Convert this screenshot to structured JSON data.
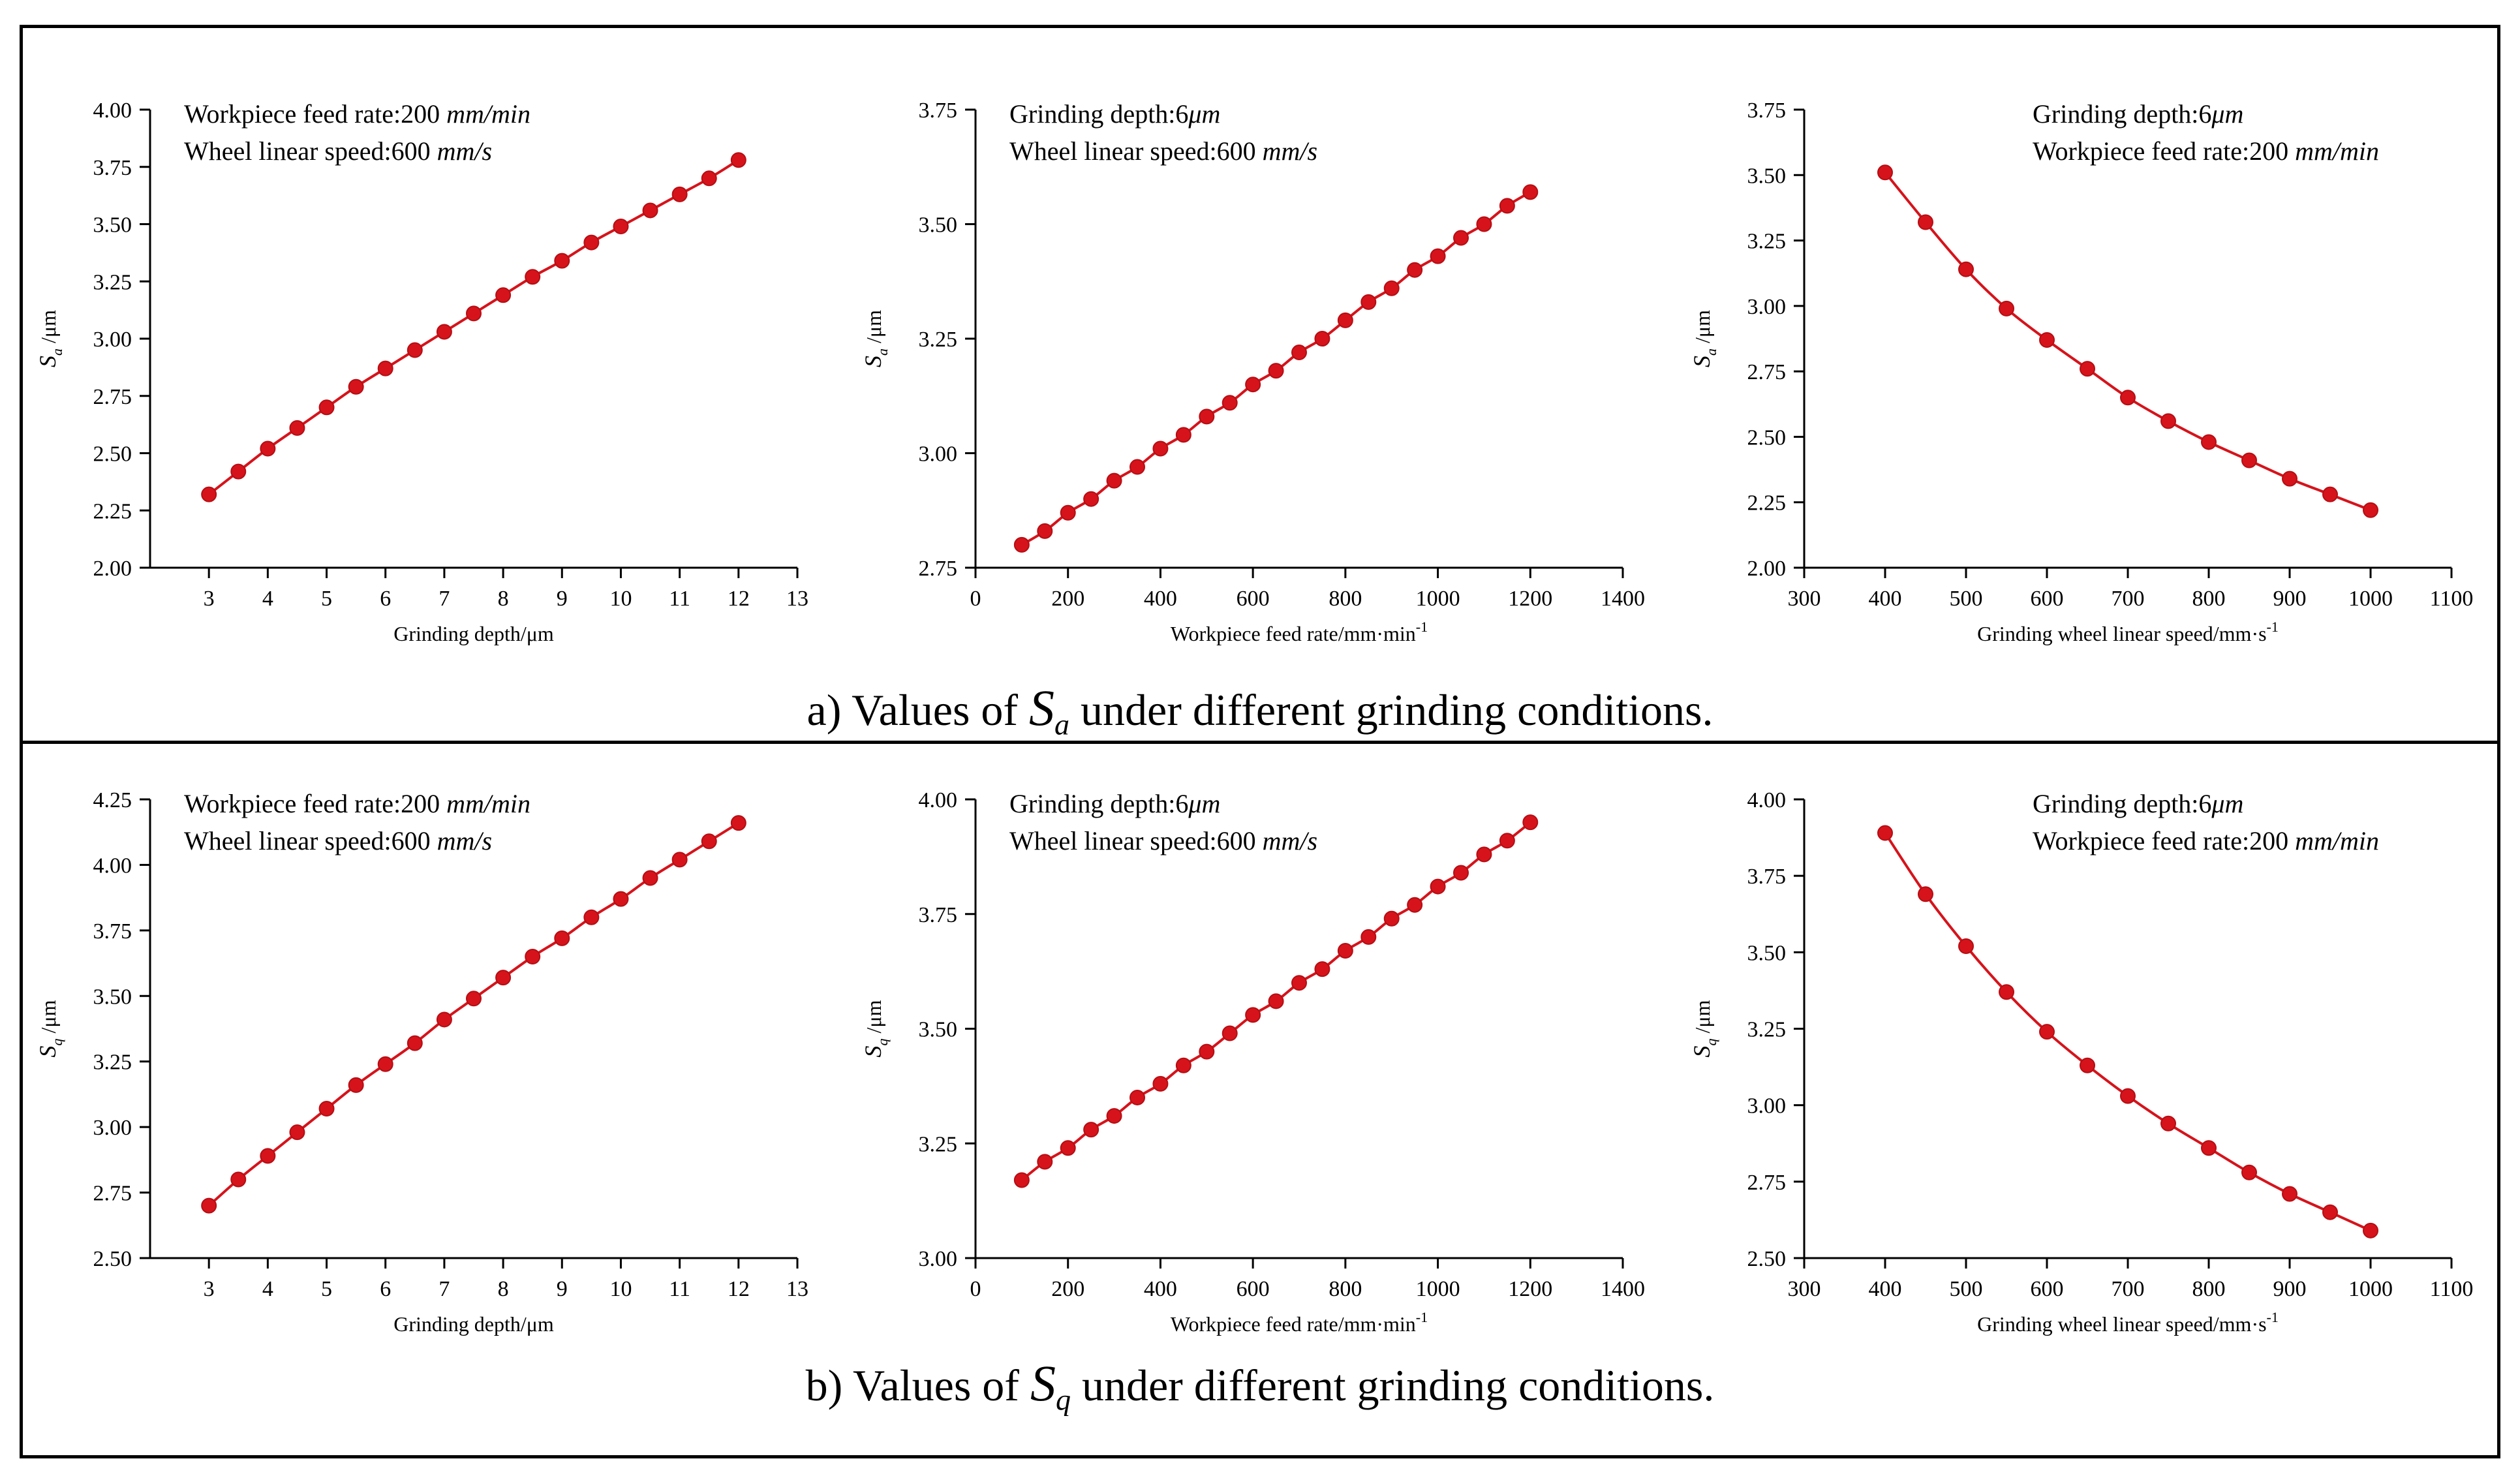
{
  "captions": [
    {
      "prefix": "a) Values of ",
      "symbol": "S",
      "subscript": "a",
      "suffix": " under different grinding conditions."
    },
    {
      "prefix": "b) Values of ",
      "symbol": "S",
      "subscript": "q",
      "suffix": " under different grinding conditions."
    }
  ],
  "colors": {
    "series": "#d6131b",
    "axis": "#000000"
  },
  "chart_data": [
    {
      "type": "line",
      "panel": "a-1",
      "title": "",
      "xlabel": "Grinding depth/μm",
      "ylabel": {
        "symbol": "S",
        "sub": "a",
        "unit": " /μm"
      },
      "xlim": [
        2,
        13
      ],
      "ylim": [
        2.0,
        4.0
      ],
      "xticks": [
        3,
        4,
        5,
        6,
        7,
        8,
        9,
        10,
        11,
        12,
        13
      ],
      "yticks": [
        2.0,
        2.25,
        2.5,
        2.75,
        3.0,
        3.25,
        3.5,
        3.75,
        4.0
      ],
      "ytick_labels": [
        "2.00",
        "2.25",
        "2.50",
        "2.75",
        "3.00",
        "3.25",
        "3.50",
        "3.75",
        "4.00"
      ],
      "annotations": [
        [
          {
            "t": "Workpiece feed rate:200 "
          },
          {
            "t": "mm/min",
            "i": true
          }
        ],
        [
          {
            "t": "Wheel linear speed:600 "
          },
          {
            "t": "mm/s",
            "i": true
          }
        ]
      ],
      "x": [
        3,
        3.5,
        4,
        4.5,
        5,
        5.5,
        6,
        6.5,
        7,
        7.5,
        8,
        8.5,
        9,
        9.5,
        10,
        10.5,
        11,
        11.5,
        12
      ],
      "y": [
        2.32,
        2.42,
        2.52,
        2.61,
        2.7,
        2.79,
        2.87,
        2.95,
        3.03,
        3.11,
        3.19,
        3.27,
        3.34,
        3.42,
        3.49,
        3.56,
        3.63,
        3.7,
        3.78
      ]
    },
    {
      "type": "line",
      "panel": "a-2",
      "title": "",
      "xlabel": "Workpiece feed rate/mm·min",
      "xlabel_sup": "-1",
      "ylabel": {
        "symbol": "S",
        "sub": "a",
        "unit": " /μm"
      },
      "xlim": [
        0,
        1400
      ],
      "ylim": [
        2.75,
        3.75
      ],
      "xticks": [
        0,
        200,
        400,
        600,
        800,
        1000,
        1200,
        1400
      ],
      "yticks": [
        2.75,
        3.0,
        3.25,
        3.5,
        3.75
      ],
      "ytick_labels": [
        "2.75",
        "3.00",
        "3.25",
        "3.50",
        "3.75"
      ],
      "annotations": [
        [
          {
            "t": "Grinding depth:6"
          },
          {
            "t": "μm",
            "i": true
          }
        ],
        [
          {
            "t": "Wheel linear speed:600 "
          },
          {
            "t": "mm/s",
            "i": true
          }
        ]
      ],
      "x": [
        100,
        150,
        200,
        250,
        300,
        350,
        400,
        450,
        500,
        550,
        600,
        650,
        700,
        750,
        800,
        850,
        900,
        950,
        1000,
        1050,
        1100,
        1150,
        1200
      ],
      "y": [
        2.8,
        2.83,
        2.87,
        2.9,
        2.94,
        2.97,
        3.01,
        3.04,
        3.08,
        3.11,
        3.15,
        3.18,
        3.22,
        3.25,
        3.29,
        3.33,
        3.36,
        3.4,
        3.43,
        3.47,
        3.5,
        3.54,
        3.57
      ]
    },
    {
      "type": "line",
      "panel": "a-3",
      "title": "",
      "xlabel": "Grinding wheel linear speed/mm·s",
      "xlabel_sup": "-1",
      "ylabel": {
        "symbol": "S",
        "sub": "a",
        "unit": " /μm"
      },
      "xlim": [
        300,
        1100
      ],
      "ylim": [
        2.0,
        3.75
      ],
      "xticks": [
        300,
        400,
        500,
        600,
        700,
        800,
        900,
        1000,
        1100
      ],
      "yticks": [
        2.0,
        2.25,
        2.5,
        2.75,
        3.0,
        3.25,
        3.5,
        3.75
      ],
      "ytick_labels": [
        "2.00",
        "2.25",
        "2.50",
        "2.75",
        "3.00",
        "3.25",
        "3.50",
        "3.75"
      ],
      "annotations": [
        [
          {
            "t": "Grinding depth:6"
          },
          {
            "t": "μm",
            "i": true
          }
        ],
        [
          {
            "t": "Workpiece feed rate:200 "
          },
          {
            "t": "mm/min",
            "i": true
          }
        ]
      ],
      "x": [
        400,
        450,
        500,
        550,
        600,
        650,
        700,
        750,
        800,
        850,
        900,
        950,
        1000
      ],
      "y": [
        3.51,
        3.32,
        3.14,
        2.99,
        2.87,
        2.76,
        2.65,
        2.56,
        2.48,
        2.41,
        2.34,
        2.28,
        2.22
      ]
    },
    {
      "type": "line",
      "panel": "b-1",
      "title": "",
      "xlabel": "Grinding depth/μm",
      "ylabel": {
        "symbol": "S",
        "sub": "q",
        "unit": " /μm"
      },
      "xlim": [
        2,
        13
      ],
      "ylim": [
        2.5,
        4.25
      ],
      "xticks": [
        3,
        4,
        5,
        6,
        7,
        8,
        9,
        10,
        11,
        12,
        13
      ],
      "yticks": [
        2.5,
        2.75,
        3.0,
        3.25,
        3.5,
        3.75,
        4.0,
        4.25
      ],
      "ytick_labels": [
        "2.50",
        "2.75",
        "3.00",
        "3.25",
        "3.50",
        "3.75",
        "4.00",
        "4.25"
      ],
      "annotations": [
        [
          {
            "t": "Workpiece feed rate:200 "
          },
          {
            "t": "mm/min",
            "i": true
          }
        ],
        [
          {
            "t": "Wheel linear speed:600 "
          },
          {
            "t": "mm/s",
            "i": true
          }
        ]
      ],
      "x": [
        3,
        3.5,
        4,
        4.5,
        5,
        5.5,
        6,
        6.5,
        7,
        7.5,
        8,
        8.5,
        9,
        9.5,
        10,
        10.5,
        11,
        11.5,
        12
      ],
      "y": [
        2.7,
        2.8,
        2.89,
        2.98,
        3.07,
        3.16,
        3.24,
        3.32,
        3.41,
        3.49,
        3.57,
        3.65,
        3.72,
        3.8,
        3.87,
        3.95,
        4.02,
        4.09,
        4.16
      ]
    },
    {
      "type": "line",
      "panel": "b-2",
      "title": "",
      "xlabel": "Workpiece feed rate/mm·min",
      "xlabel_sup": "-1",
      "ylabel": {
        "symbol": "S",
        "sub": "q",
        "unit": " /μm"
      },
      "xlim": [
        0,
        1400
      ],
      "ylim": [
        3.0,
        4.0
      ],
      "xticks": [
        0,
        200,
        400,
        600,
        800,
        1000,
        1200,
        1400
      ],
      "yticks": [
        3.0,
        3.25,
        3.5,
        3.75,
        4.0
      ],
      "ytick_labels": [
        "3.00",
        "3.25",
        "3.50",
        "3.75",
        "4.00"
      ],
      "annotations": [
        [
          {
            "t": "Grinding depth:6"
          },
          {
            "t": "μm",
            "i": true
          }
        ],
        [
          {
            "t": "Wheel linear speed:600 "
          },
          {
            "t": "mm/s",
            "i": true
          }
        ]
      ],
      "x": [
        100,
        150,
        200,
        250,
        300,
        350,
        400,
        450,
        500,
        550,
        600,
        650,
        700,
        750,
        800,
        850,
        900,
        950,
        1000,
        1050,
        1100,
        1150,
        1200
      ],
      "y": [
        3.17,
        3.21,
        3.24,
        3.28,
        3.31,
        3.35,
        3.38,
        3.42,
        3.45,
        3.49,
        3.53,
        3.56,
        3.6,
        3.63,
        3.67,
        3.7,
        3.74,
        3.77,
        3.81,
        3.84,
        3.88,
        3.91,
        3.95
      ]
    },
    {
      "type": "line",
      "panel": "b-3",
      "title": "",
      "xlabel": "Grinding wheel linear speed/mm·s",
      "xlabel_sup": "-1",
      "ylabel": {
        "symbol": "S",
        "sub": "q",
        "unit": " /μm"
      },
      "xlim": [
        300,
        1100
      ],
      "ylim": [
        2.5,
        4.0
      ],
      "xticks": [
        300,
        400,
        500,
        600,
        700,
        800,
        900,
        1000,
        1100
      ],
      "yticks": [
        2.5,
        2.75,
        3.0,
        3.25,
        3.5,
        3.75,
        4.0
      ],
      "ytick_labels": [
        "2.50",
        "2.75",
        "3.00",
        "3.25",
        "3.50",
        "3.75",
        "4.00"
      ],
      "annotations": [
        [
          {
            "t": "Grinding depth:6"
          },
          {
            "t": "μm",
            "i": true
          }
        ],
        [
          {
            "t": "Workpiece feed rate:200 "
          },
          {
            "t": "mm/min",
            "i": true
          }
        ]
      ],
      "x": [
        400,
        450,
        500,
        550,
        600,
        650,
        700,
        750,
        800,
        850,
        900,
        950,
        1000
      ],
      "y": [
        3.89,
        3.69,
        3.52,
        3.37,
        3.24,
        3.13,
        3.03,
        2.94,
        2.86,
        2.78,
        2.71,
        2.65,
        2.59
      ]
    }
  ]
}
